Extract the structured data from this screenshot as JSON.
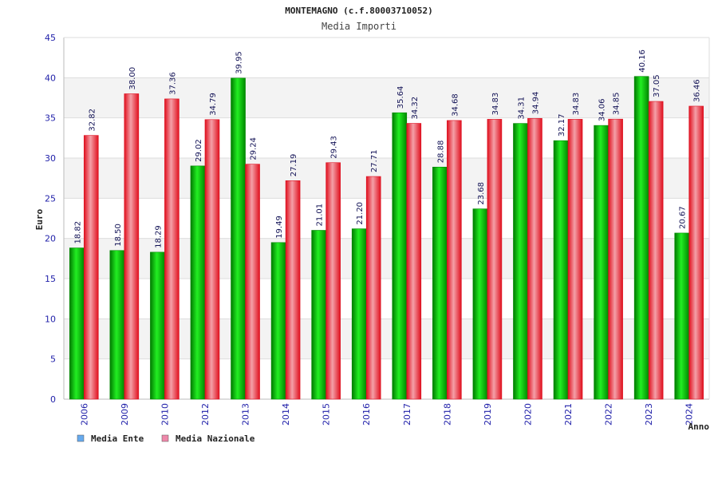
{
  "chart_data": {
    "type": "bar",
    "title": "MONTEMAGNO (c.f.80003710052)",
    "subtitle": "Media Importi",
    "ylabel": "Euro",
    "xlabel": "Anno",
    "ylim": [
      0,
      45
    ],
    "yticks": [
      0,
      5,
      10,
      15,
      20,
      25,
      30,
      35,
      40,
      45
    ],
    "categories": [
      "2006",
      "2009",
      "2010",
      "2012",
      "2013",
      "2014",
      "2015",
      "2016",
      "2017",
      "2018",
      "2019",
      "2020",
      "2021",
      "2022",
      "2023",
      "2024"
    ],
    "series": [
      {
        "name": "Media Ente",
        "color": "#00aa00",
        "values": [
          18.82,
          18.5,
          18.29,
          29.02,
          39.95,
          19.49,
          21.01,
          21.2,
          35.64,
          28.88,
          23.68,
          34.31,
          32.17,
          34.06,
          40.16,
          20.67
        ],
        "labels": [
          "18.82",
          "18.50",
          "18.29",
          "29.02",
          "39.95",
          "19.49",
          "21.01",
          "21.20",
          "35.64",
          "28.88",
          "23.68",
          "34.31",
          "32.17",
          "34.06",
          "40.16",
          "20.67"
        ]
      },
      {
        "name": "Media Nazionale",
        "color": "#ee2233",
        "values": [
          32.82,
          38.0,
          37.36,
          34.79,
          29.24,
          27.19,
          29.43,
          27.71,
          34.32,
          34.68,
          34.83,
          34.94,
          34.83,
          34.85,
          37.05,
          36.46
        ],
        "labels": [
          "32.82",
          "38.00",
          "37.36",
          "34.79",
          "29.24",
          "27.19",
          "29.43",
          "27.71",
          "34.32",
          "34.68",
          "34.83",
          "34.94",
          "34.83",
          "34.85",
          "37.05",
          "36.46"
        ]
      }
    ],
    "legend": {
      "placement": "bottom-left",
      "items": [
        {
          "label": "Media Ente",
          "color": "#66aaee"
        },
        {
          "label": "Media Nazionale",
          "color": "#ee88aa"
        }
      ]
    },
    "grid": true,
    "band_colors": [
      "#ffffff",
      "#f3f3f3"
    ]
  }
}
